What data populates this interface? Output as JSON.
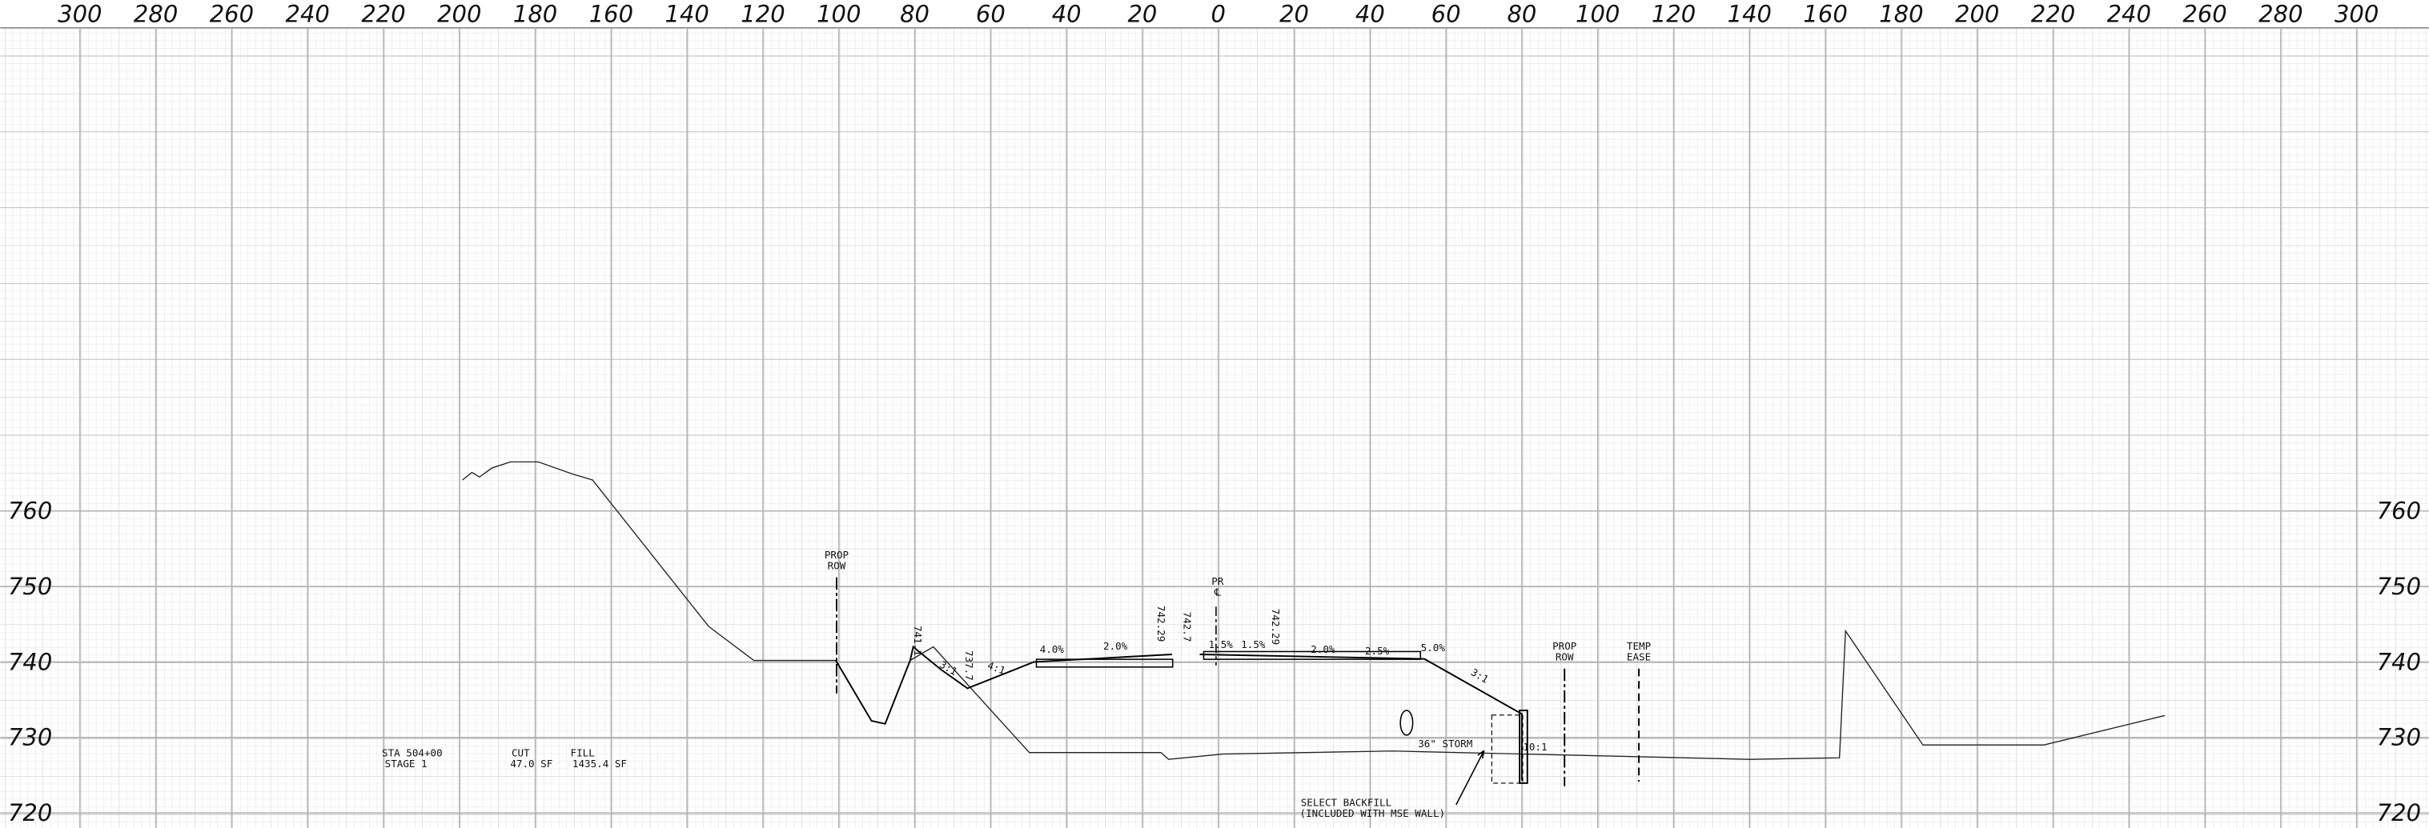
{
  "chart_data": {
    "type": "line",
    "xlim": [
      -321,
      319
    ],
    "ylim": [
      718,
      824
    ],
    "xticks": [
      {
        "value": -300,
        "label": "300"
      },
      {
        "value": -280,
        "label": "280"
      },
      {
        "value": -260,
        "label": "260"
      },
      {
        "value": -240,
        "label": "240"
      },
      {
        "value": -220,
        "label": "220"
      },
      {
        "value": -200,
        "label": "200"
      },
      {
        "value": -180,
        "label": "180"
      },
      {
        "value": -160,
        "label": "160"
      },
      {
        "value": -140,
        "label": "140"
      },
      {
        "value": -120,
        "label": "120"
      },
      {
        "value": -100,
        "label": "100"
      },
      {
        "value": -80,
        "label": "80"
      },
      {
        "value": -60,
        "label": "60"
      },
      {
        "value": -40,
        "label": "40"
      },
      {
        "value": -20,
        "label": "20"
      },
      0,
      20,
      40,
      60,
      80,
      100,
      120,
      140,
      160,
      180,
      200,
      220,
      240,
      260,
      280,
      300
    ],
    "yticks": [
      720,
      730,
      740,
      750,
      760
    ],
    "grid": true,
    "series": [
      {
        "color": "#222222",
        "x": [
          -199.2,
          -196.7,
          -194.7,
          -191.4,
          -186.5,
          -179.2,
          -170.2,
          -164.9,
          -134.3,
          -122.4,
          -100.8,
          -91.4,
          -87.8,
          -81.2,
          -75.1,
          -49.8,
          -15.1,
          -13.1,
          1.2,
          46.1,
          140,
          163.7,
          165.3,
          185.7,
          217.6,
          249.4
        ],
        "values": [
          764.1,
          765.1,
          764.5,
          765.7,
          766.5,
          766.5,
          764.9,
          764.1,
          744.7,
          740.2,
          740.2,
          732.2,
          731.8,
          740.2,
          742.0,
          728.0,
          728.0,
          727.1,
          727.8,
          728.2,
          727.1,
          727.3,
          744.1,
          729.0,
          729.0,
          732.9
        ]
      },
      {
        "color": "#000000",
        "x": [
          -100.8,
          -91.4,
          -87.8,
          -81.2,
          -80.4,
          -73.1,
          -66.1,
          -48.6,
          -12.2,
          null,
          -4.9,
          54.3,
          80.0,
          80.0
        ],
        "values": [
          740.2,
          732.2,
          731.8,
          740.2,
          742.0,
          739.0,
          736.5,
          740.0,
          741.0,
          null,
          741.0,
          740.4,
          733.1,
          724.3
        ]
      }
    ],
    "annotations": [
      "PROP",
      "ROW",
      "PR",
      "℄",
      "741.1",
      "3:1",
      "737.7",
      "4:1",
      "4.0%",
      "2.0%",
      "742.29",
      "742.7",
      "1.5%",
      "1.5%",
      "742.29",
      "2.0%",
      "2.5%",
      "5.0%",
      "3:1",
      "PROP",
      "ROW",
      "TEMP",
      "EASE",
      "36\" STORM",
      "10:1",
      "STA 504+00",
      "STAGE 1",
      "CUT",
      "47.0 SF",
      "FILL",
      "1435.4 SF",
      "SELECT BACKFILL",
      "(INCLUDED WITH MSE WALL)"
    ]
  }
}
